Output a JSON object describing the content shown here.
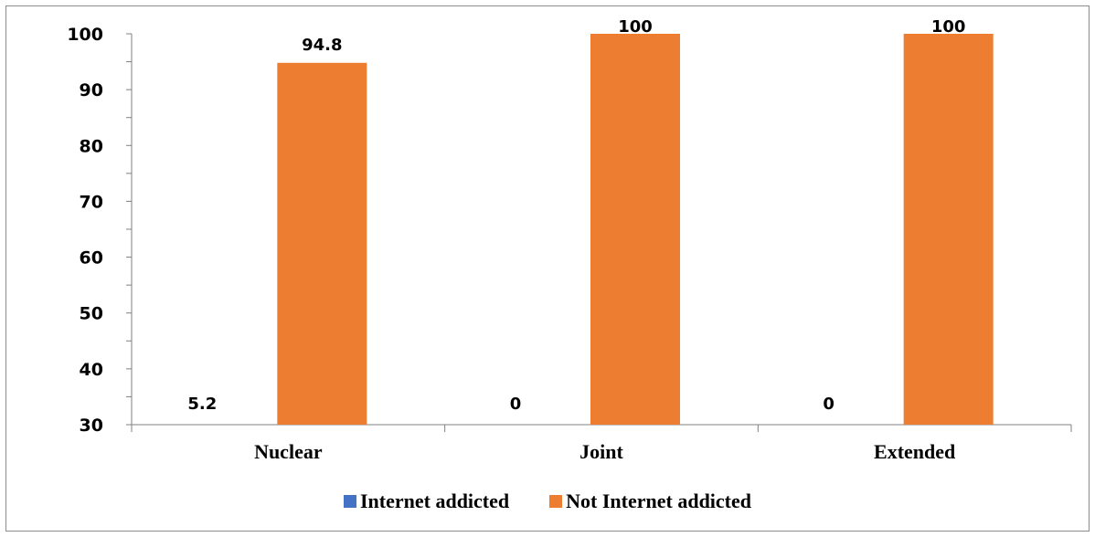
{
  "chart_data": {
    "type": "bar",
    "title": "",
    "xlabel": "",
    "ylabel": "",
    "categories": [
      "Nuclear",
      "Joint",
      "Extended"
    ],
    "series": [
      {
        "name": "Internet addicted",
        "values": [
          5.2,
          0,
          0
        ],
        "labels": [
          "5.2",
          "0",
          "0"
        ],
        "color": "#4472C4"
      },
      {
        "name": "Not Internet addicted",
        "values": [
          94.8,
          100,
          100
        ],
        "labels": [
          "94.8",
          "100",
          "100"
        ],
        "color": "#ED7D31"
      }
    ],
    "ylim": [
      30,
      100
    ],
    "yticks": [
      30,
      40,
      50,
      60,
      70,
      80,
      90,
      100
    ],
    "ytick_labels": [
      "30",
      "40",
      "50",
      "60",
      "70",
      "80",
      "90",
      "100"
    ],
    "grid": false,
    "legend_position": "bottom"
  }
}
